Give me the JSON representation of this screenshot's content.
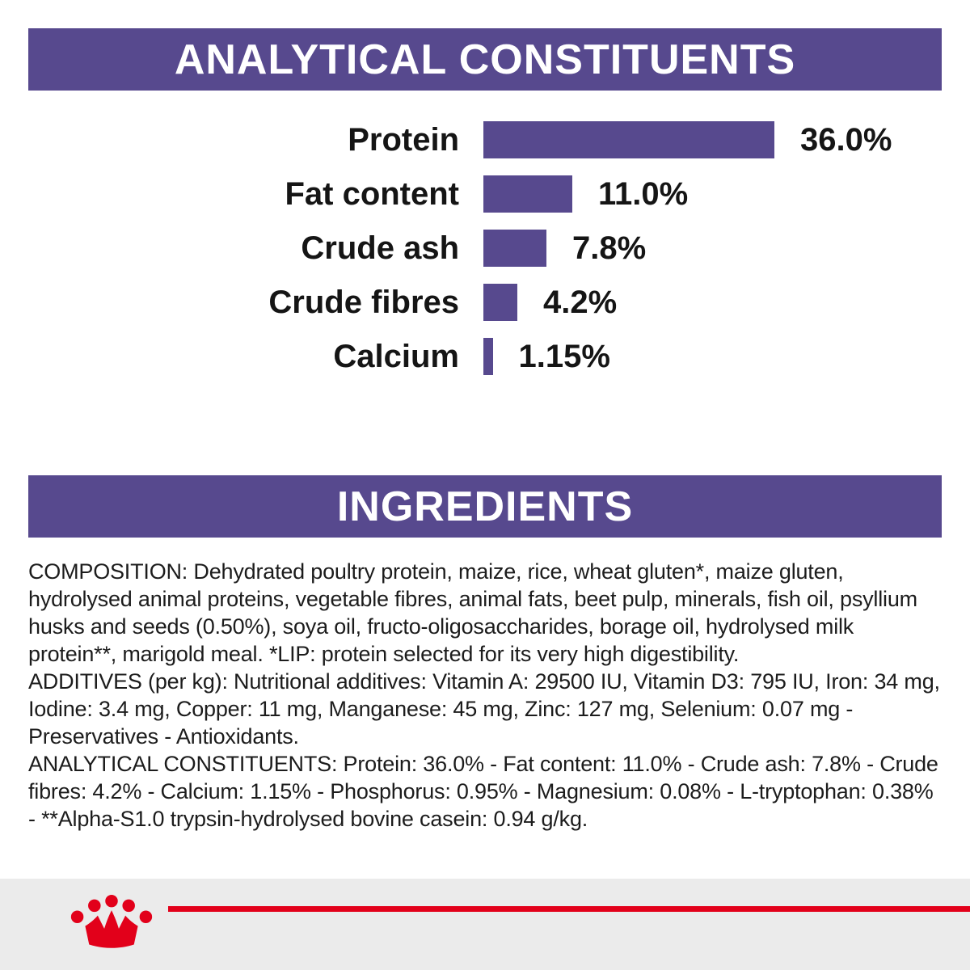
{
  "colors": {
    "purple": "#57498e",
    "red": "#e2001a",
    "text": "#1c1c1c",
    "footer_gray": "#ebebeb"
  },
  "banners": {
    "analytical": "ANALYTICAL CONSTITUENTS",
    "ingredients": "INGREDIENTS"
  },
  "chart_data": {
    "type": "bar",
    "orientation": "horizontal",
    "title": "ANALYTICAL CONSTITUENTS",
    "categories": [
      "Protein",
      "Fat content",
      "Crude ash",
      "Crude fibres",
      "Calcium"
    ],
    "values": [
      36.0,
      11.0,
      7.8,
      4.2,
      1.15
    ],
    "value_labels": [
      "36.0%",
      "11.0%",
      "7.8%",
      "4.2%",
      "1.15%"
    ],
    "unit": "%",
    "xlim": [
      0,
      40
    ],
    "grid": false,
    "legend": false,
    "bar_color": "#57498e"
  },
  "ingredients": {
    "composition": "COMPOSITION: Dehydrated poultry protein, maize, rice, wheat gluten*, maize gluten, hydrolysed animal proteins, vegetable fibres, animal fats, beet pulp, minerals, fish oil, psyllium husks and seeds (0.50%), soya oil, fructo-oligosaccharides, borage oil, hydrolysed milk protein**, marigold meal. *LIP: protein selected for its very high digestibility.",
    "additives": "ADDITIVES (per kg): Nutritional additives: Vitamin A: 29500 IU, Vitamin D3: 795 IU, Iron: 34 mg, Iodine: 3.4 mg, Copper: 11 mg, Manganese: 45 mg, Zinc: 127 mg, Selenium: 0.07 mg - Preservatives - Antioxidants.",
    "analytical": "ANALYTICAL CONSTITUENTS: Protein: 36.0% - Fat content: 11.0% - Crude ash: 7.8% - Crude fibres: 4.2% - Calcium: 1.15% - Phosphorus: 0.95% - Magnesium: 0.08% - L-tryptophan: 0.38% - **Alpha-S1.0 trypsin-hydrolysed bovine casein: 0.94 g/kg."
  },
  "footer": {
    "logo": "royal-canin-crown"
  }
}
